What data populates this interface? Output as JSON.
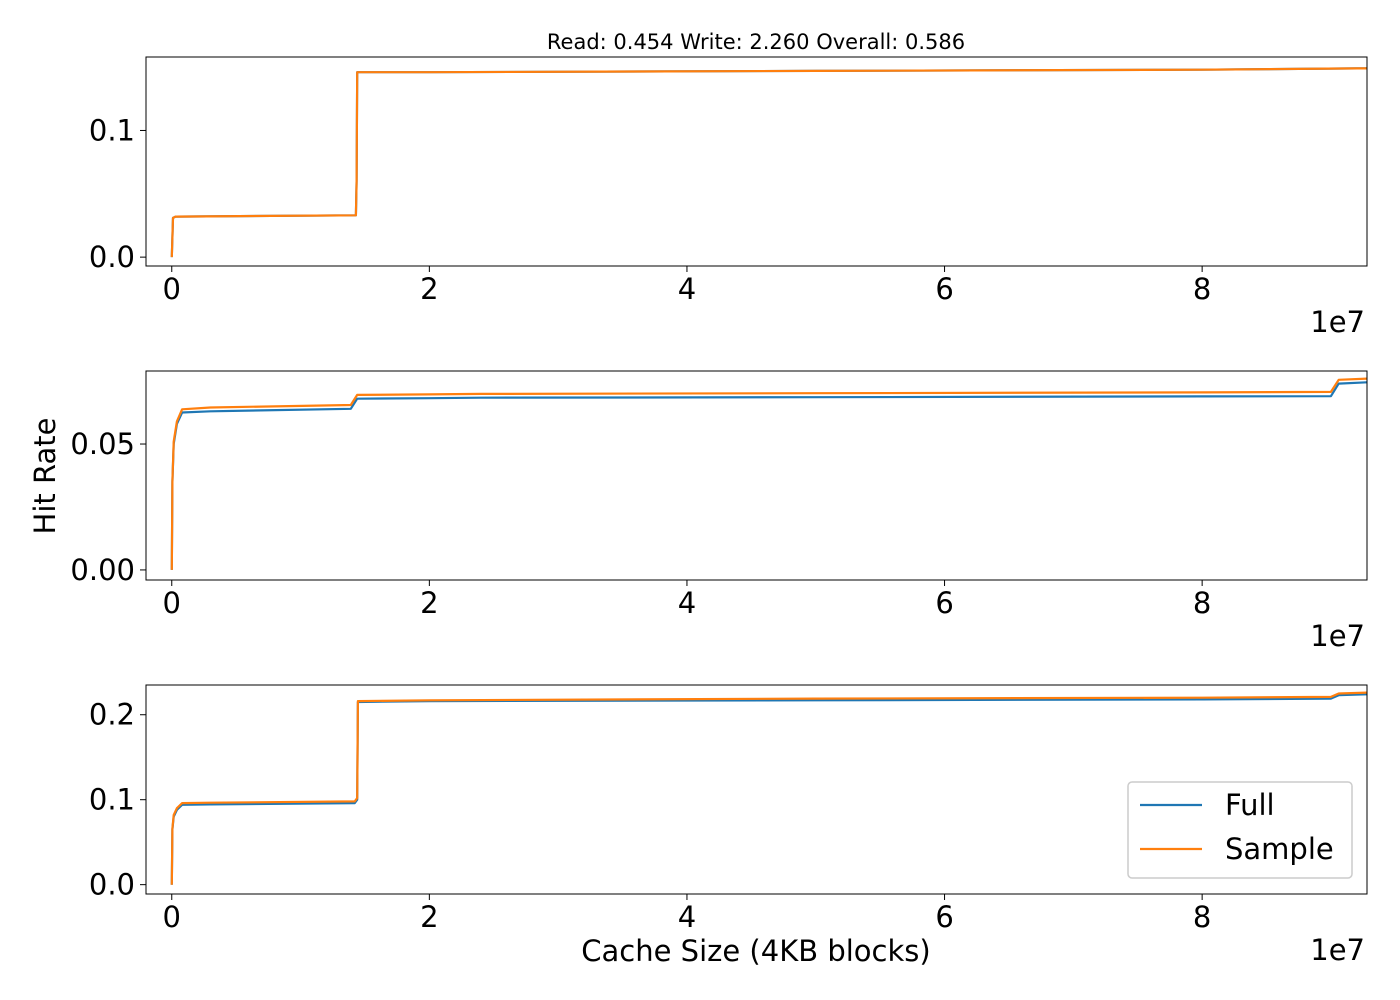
{
  "title": "Read: 0.454 Write: 2.260 Overall: 0.586",
  "xlabel": "Cache Size (4KB blocks)",
  "ylabel": "Hit Rate",
  "x_offset_label": "1e7",
  "colors": {
    "Full": "#1f77b4",
    "Sample": "#ff7f0e"
  },
  "legend": {
    "placement": "lower right",
    "entries": [
      "Full",
      "Sample"
    ]
  },
  "chart_data": [
    {
      "type": "line",
      "title": "Read: 0.454 Write: 2.260 Overall: 0.586",
      "xlim": [
        -2000000,
        92800000
      ],
      "ylim": [
        -0.007,
        0.158
      ],
      "xticks": [
        0,
        20000000,
        40000000,
        60000000,
        80000000
      ],
      "xtick_labels": [
        "0",
        "2",
        "4",
        "6",
        "8"
      ],
      "yticks": [
        0.0,
        0.1
      ],
      "ytick_labels": [
        "0.0",
        "0.1"
      ],
      "series": [
        {
          "name": "Full",
          "color": "#1f77b4",
          "x": [
            0,
            100000,
            300000,
            14300000,
            14350000,
            14400000,
            20000000,
            50000000,
            80000000,
            92000000,
            92800000
          ],
          "y": [
            0.0,
            0.031,
            0.032,
            0.033,
            0.06,
            0.146,
            0.146,
            0.147,
            0.148,
            0.149,
            0.149
          ]
        },
        {
          "name": "Sample",
          "color": "#ff7f0e",
          "x": [
            0,
            100000,
            300000,
            14300000,
            14350000,
            14400000,
            20000000,
            50000000,
            80000000,
            92000000,
            92800000
          ],
          "y": [
            0.0,
            0.031,
            0.032,
            0.033,
            0.06,
            0.146,
            0.146,
            0.147,
            0.148,
            0.149,
            0.149
          ]
        }
      ]
    },
    {
      "type": "line",
      "ylabel": "Hit Rate",
      "xlim": [
        -2000000,
        92800000
      ],
      "ylim": [
        -0.004,
        0.079
      ],
      "xticks": [
        0,
        20000000,
        40000000,
        60000000,
        80000000
      ],
      "xtick_labels": [
        "0",
        "2",
        "4",
        "6",
        "8"
      ],
      "yticks": [
        0.0,
        0.05
      ],
      "ytick_labels": [
        "0.00",
        "0.05"
      ],
      "series": [
        {
          "name": "Full",
          "color": "#1f77b4",
          "x": [
            0,
            50000,
            150000,
            400000,
            800000,
            3000000,
            13900000,
            14400000,
            20000000,
            24000000,
            50000000,
            80000000,
            90000000,
            90600000,
            92800000
          ],
          "y": [
            0.0,
            0.035,
            0.05,
            0.058,
            0.0625,
            0.063,
            0.064,
            0.068,
            0.0682,
            0.0684,
            0.0686,
            0.0689,
            0.069,
            0.074,
            0.0745
          ]
        },
        {
          "name": "Sample",
          "color": "#ff7f0e",
          "x": [
            0,
            50000,
            150000,
            400000,
            800000,
            3000000,
            13900000,
            14400000,
            20000000,
            24000000,
            50000000,
            80000000,
            90000000,
            90600000,
            92800000
          ],
          "y": [
            0.0,
            0.035,
            0.051,
            0.059,
            0.0638,
            0.0645,
            0.0655,
            0.0695,
            0.0697,
            0.0699,
            0.0702,
            0.0705,
            0.0707,
            0.0755,
            0.076
          ]
        }
      ]
    },
    {
      "type": "line",
      "xlabel": "Cache Size (4KB blocks)",
      "xlim": [
        -2000000,
        92800000
      ],
      "ylim": [
        -0.011,
        0.235
      ],
      "xticks": [
        0,
        20000000,
        40000000,
        60000000,
        80000000
      ],
      "xtick_labels": [
        "0",
        "2",
        "4",
        "6",
        "8"
      ],
      "yticks": [
        0.0,
        0.1,
        0.2
      ],
      "ytick_labels": [
        "0.0",
        "0.1",
        "0.2"
      ],
      "series": [
        {
          "name": "Full",
          "color": "#1f77b4",
          "x": [
            0,
            50000,
            150000,
            400000,
            800000,
            3000000,
            14200000,
            14400000,
            14450000,
            20000000,
            50000000,
            80000000,
            90000000,
            90600000,
            92800000
          ],
          "y": [
            0.0,
            0.065,
            0.08,
            0.088,
            0.094,
            0.0945,
            0.096,
            0.1,
            0.215,
            0.216,
            0.217,
            0.218,
            0.219,
            0.223,
            0.224
          ]
        },
        {
          "name": "Sample",
          "color": "#ff7f0e",
          "x": [
            0,
            50000,
            150000,
            400000,
            800000,
            3000000,
            14200000,
            14400000,
            14450000,
            20000000,
            50000000,
            80000000,
            90000000,
            90600000,
            92800000
          ],
          "y": [
            0.0,
            0.066,
            0.082,
            0.09,
            0.096,
            0.0965,
            0.098,
            0.102,
            0.216,
            0.217,
            0.219,
            0.22,
            0.221,
            0.225,
            0.226
          ]
        }
      ]
    }
  ]
}
